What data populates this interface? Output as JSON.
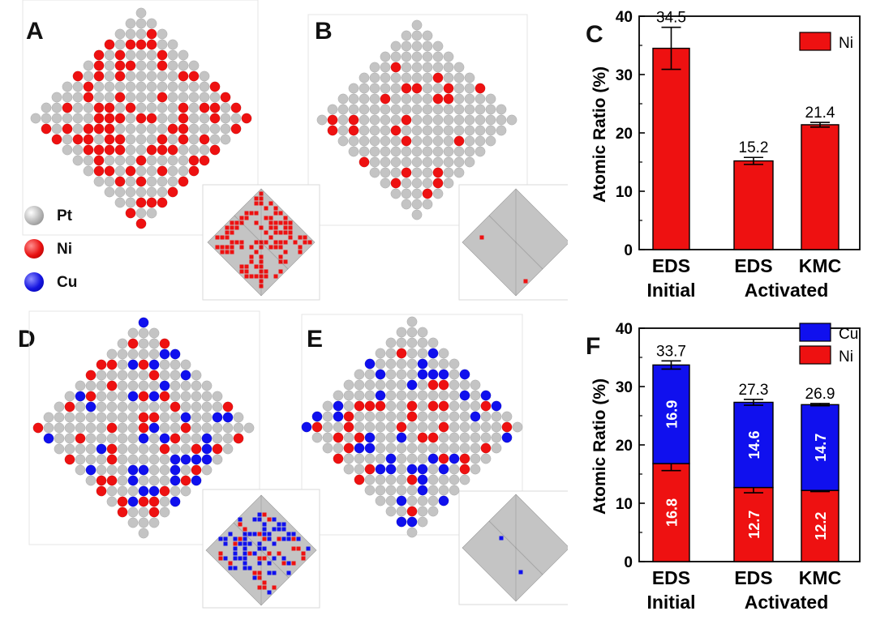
{
  "panels": {
    "a": "A",
    "b": "B",
    "c": "C",
    "d": "D",
    "e": "E",
    "f": "F"
  },
  "atom_legend": [
    {
      "name": "pt-atom",
      "label": "Pt",
      "color": "#c4c4c4"
    },
    {
      "name": "ni-atom",
      "label": "Ni",
      "color": "#e81010"
    },
    {
      "name": "cu-atom",
      "label": "Cu",
      "color": "#1414e0"
    }
  ],
  "colors": {
    "pt": "#c4c4c4",
    "ni": "#ee1111",
    "cu": "#1010ee"
  },
  "chart_data": [
    {
      "type": "bar",
      "panel": "C",
      "categories": [
        "EDS",
        "EDS",
        "KMC"
      ],
      "groups": [
        "Initial",
        "Activated"
      ],
      "series": [
        {
          "name": "Ni",
          "values": [
            34.5,
            15.2,
            21.4
          ],
          "errors": [
            3.6,
            0.6,
            0.4
          ]
        }
      ],
      "value_labels": [
        "34.5",
        "15.2",
        "21.4"
      ],
      "ylabel": "Atomic Ratio (%)",
      "ylim": [
        0,
        40
      ],
      "yticks": [
        0,
        10,
        20,
        30,
        40
      ],
      "legend": "top-right"
    },
    {
      "type": "bar",
      "stacked": true,
      "panel": "F",
      "categories": [
        "EDS",
        "EDS",
        "KMC"
      ],
      "groups": [
        "Initial",
        "Activated"
      ],
      "series": [
        {
          "name": "Ni",
          "values": [
            16.8,
            12.7,
            12.2
          ],
          "labels": [
            "16.8",
            "12.7",
            "12.2"
          ],
          "errors": [
            1.2,
            0.9,
            0.2
          ]
        },
        {
          "name": "Cu",
          "values": [
            16.9,
            14.6,
            14.7
          ],
          "labels": [
            "16.9",
            "14.6",
            "14.7"
          ],
          "errors": [
            0.7,
            0.5,
            0.2
          ]
        }
      ],
      "totals": [
        "33.7",
        "27.3",
        "26.9"
      ],
      "ylabel": "Atomic Ratio (%)",
      "ylim": [
        0,
        40
      ],
      "yticks": [
        0,
        10,
        20,
        30,
        40
      ],
      "legend": "top-right"
    }
  ]
}
